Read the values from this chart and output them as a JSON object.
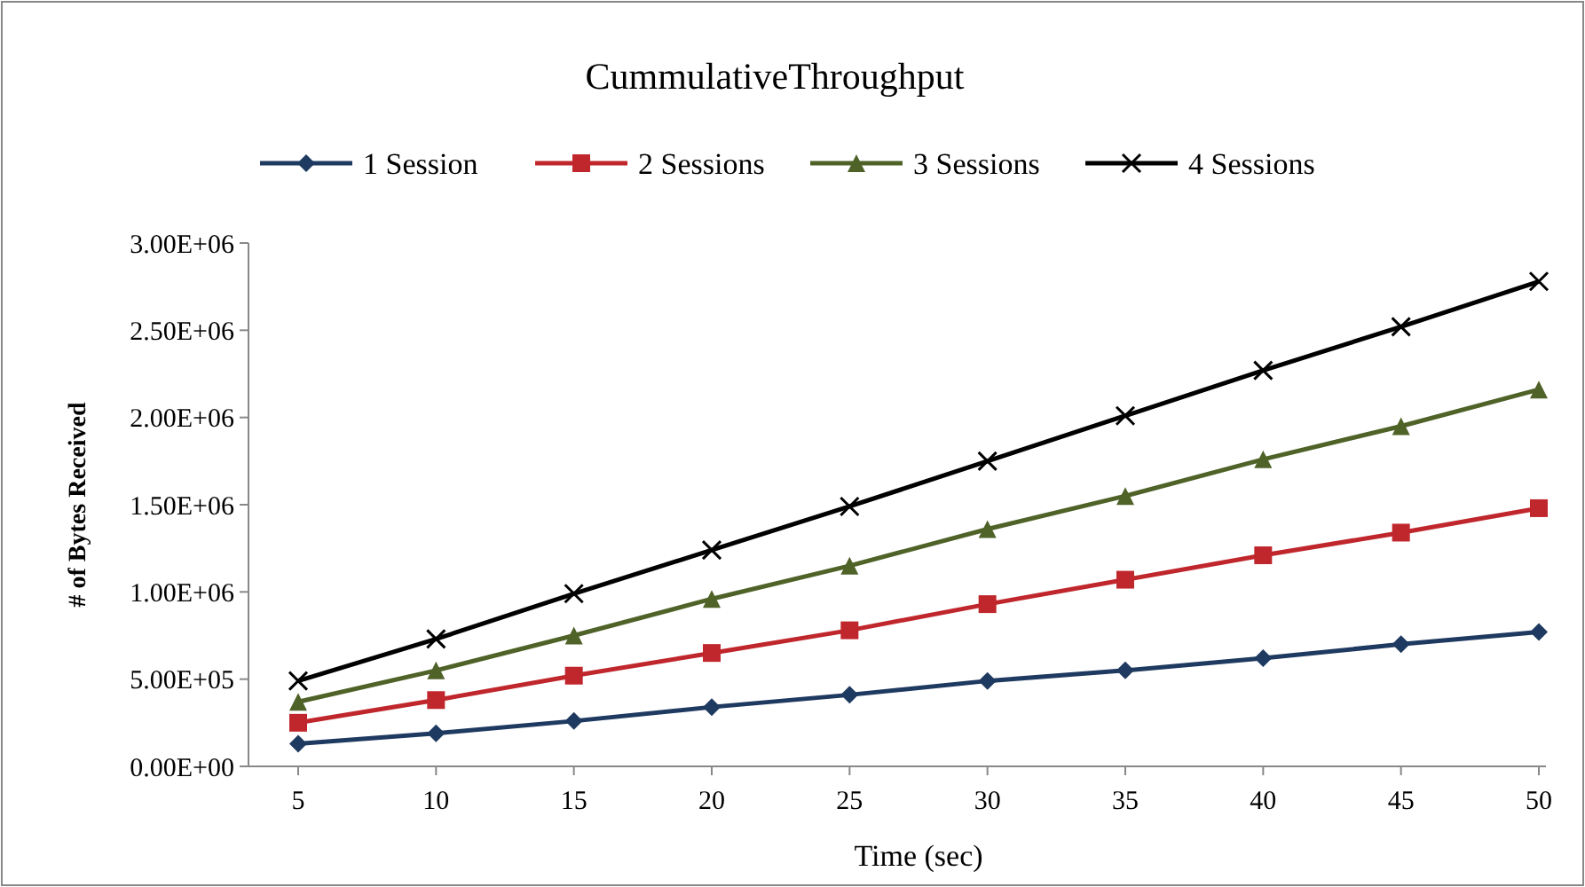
{
  "chart_data": {
    "type": "line",
    "title": "CummulativeThroughput",
    "xlabel": "Time (sec)",
    "ylabel": "# of Bytes Received",
    "categories": [
      "5",
      "10",
      "15",
      "20",
      "25",
      "30",
      "35",
      "40",
      "45",
      "50"
    ],
    "ylim": [
      0,
      3000000
    ],
    "yticks": [
      {
        "value": 0,
        "label": "0.00E+00"
      },
      {
        "value": 500000,
        "label": "5.00E+05"
      },
      {
        "value": 1000000,
        "label": "1.00E+06"
      },
      {
        "value": 1500000,
        "label": "1.50E+06"
      },
      {
        "value": 2000000,
        "label": "2.00E+06"
      },
      {
        "value": 2500000,
        "label": "2.50E+06"
      },
      {
        "value": 3000000,
        "label": "3.00E+06"
      }
    ],
    "legend": "top",
    "series": [
      {
        "name": "1 Session",
        "color": "#1f3a60",
        "marker": "diamond",
        "values": [
          130000,
          190000,
          260000,
          340000,
          410000,
          490000,
          550000,
          620000,
          700000,
          770000
        ]
      },
      {
        "name": "2 Sessions",
        "color": "#c0272d",
        "marker": "square",
        "values": [
          250000,
          380000,
          520000,
          650000,
          780000,
          930000,
          1070000,
          1210000,
          1340000,
          1480000
        ]
      },
      {
        "name": "3 Sessions",
        "color": "#4f6228",
        "marker": "triangle",
        "values": [
          370000,
          550000,
          750000,
          960000,
          1150000,
          1360000,
          1550000,
          1760000,
          1950000,
          2160000
        ]
      },
      {
        "name": "4 Sessions",
        "color": "#000000",
        "marker": "cross",
        "values": [
          490000,
          730000,
          990000,
          1240000,
          1490000,
          1750000,
          2010000,
          2270000,
          2520000,
          2780000
        ]
      }
    ]
  }
}
